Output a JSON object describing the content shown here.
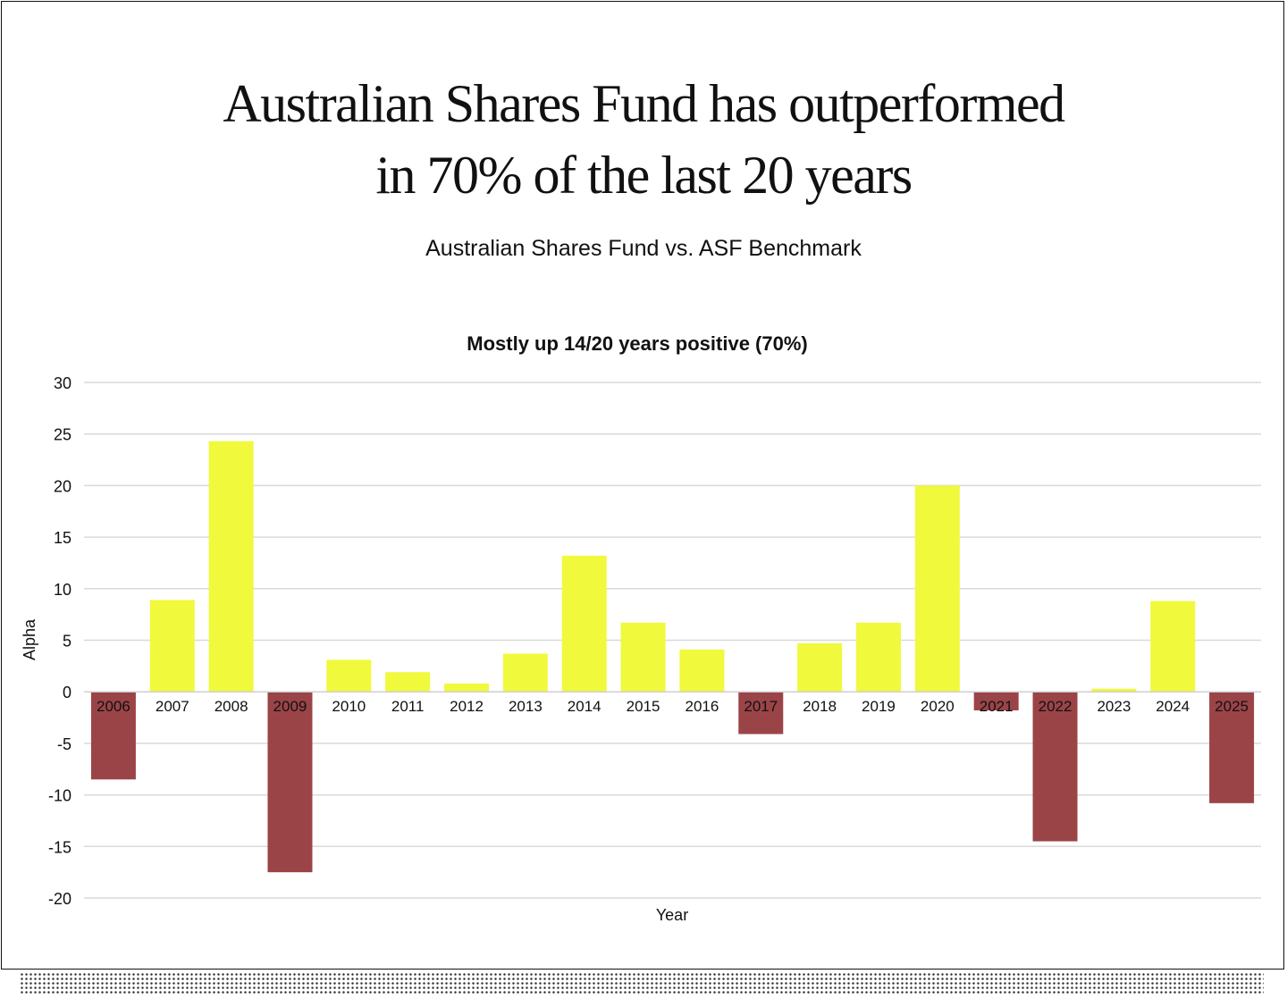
{
  "headline": {
    "line1": "Australian Shares Fund has outperformed",
    "line2": "in 70% of the last 20 years"
  },
  "subtitle": "Australian Shares Fund vs. ASF Benchmark",
  "colors": {
    "positive": "#f0f93c",
    "negative": "#9b4448",
    "grid": "#d9d9d9",
    "text": "#111111"
  },
  "chart_data": {
    "type": "bar",
    "title": "Mostly up 14/20 years positive (70%)",
    "xlabel": "Year",
    "ylabel": "Alpha",
    "ylim": [
      -20,
      30
    ],
    "yticks": [
      30,
      25,
      20,
      15,
      10,
      5,
      0,
      -5,
      -10,
      -15,
      -20
    ],
    "grid": true,
    "categories": [
      "2006",
      "2007",
      "2008",
      "2009",
      "2010",
      "2011",
      "2012",
      "2013",
      "2014",
      "2015",
      "2016",
      "2017",
      "2018",
      "2019",
      "2020",
      "2021",
      "2022",
      "2023",
      "2024",
      "2025"
    ],
    "values": [
      -8.5,
      8.9,
      24.3,
      -17.5,
      3.1,
      1.9,
      0.8,
      3.7,
      13.2,
      6.7,
      4.1,
      -4.1,
      4.7,
      6.7,
      20.0,
      -1.8,
      -14.5,
      0.3,
      8.8,
      -10.8
    ]
  }
}
